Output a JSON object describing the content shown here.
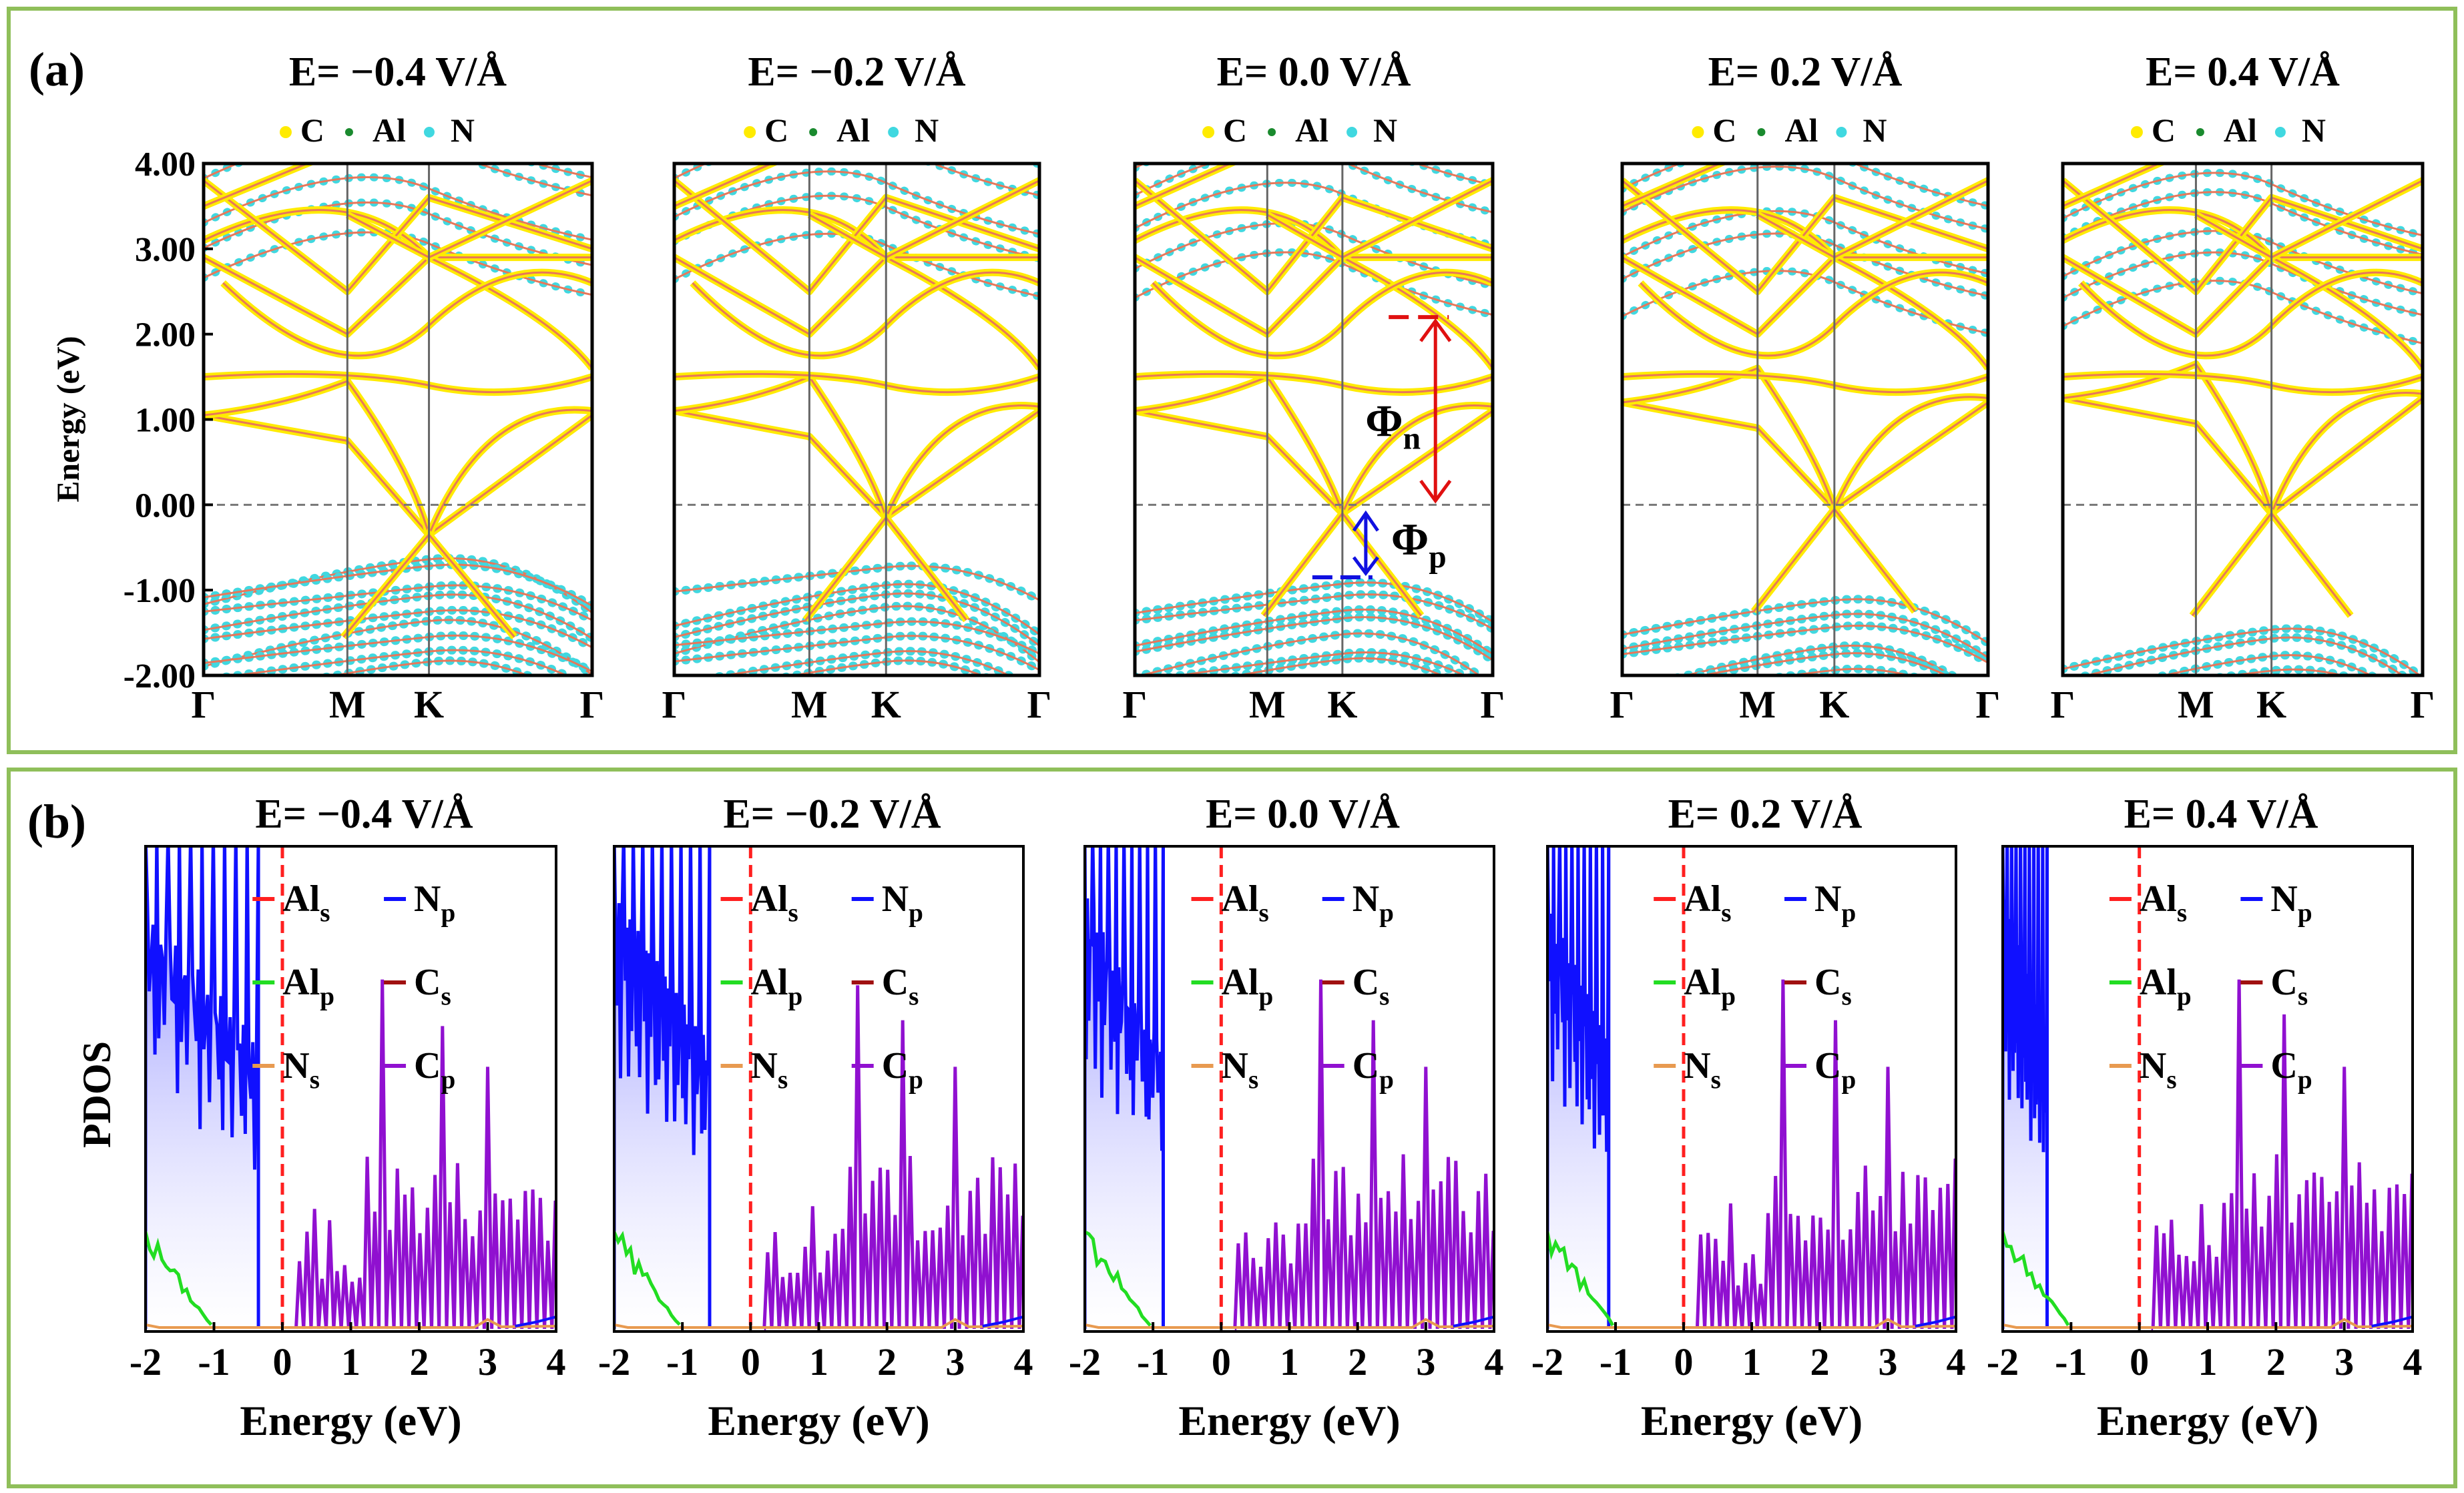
{
  "colors": {
    "frame": "#8fbf5a",
    "band_line": "#e8775a",
    "C_marker": "#ffeb00",
    "Al_marker": "#1a8a2e",
    "N_marker": "#40d8e0",
    "Al_s": "#ff2020",
    "Al_p": "#22dd22",
    "N_s": "#e89a50",
    "N_p": "#1010ff",
    "C_s": "#a01010",
    "C_p": "#9010d0",
    "phi_n": "#e01010",
    "phi_p": "#1010e0"
  },
  "panel_a": {
    "label": "(a)",
    "ylabel": "Energy (eV)",
    "legend": [
      "C",
      "Al",
      "N"
    ],
    "kpoints": [
      "Γ",
      "M",
      "K",
      "Γ"
    ],
    "annotation_n_main": "Φ",
    "annotation_n_sub": "n",
    "annotation_p_main": "Φ",
    "annotation_p_sub": "p"
  },
  "panel_b": {
    "label": "(b)",
    "ylabel": "PDOS",
    "xlabel": "Energy (eV)",
    "legend": [
      {
        "main": "Al",
        "sub": "s"
      },
      {
        "main": "N",
        "sub": "p"
      },
      {
        "main": "Al",
        "sub": "p"
      },
      {
        "main": "C",
        "sub": "s"
      },
      {
        "main": "N",
        "sub": "s"
      },
      {
        "main": "C",
        "sub": "p"
      }
    ]
  },
  "chart_data": [
    {
      "type": "line",
      "title": "E= −0.4 V/Å",
      "ylabel": "Energy (eV)",
      "ylim": [
        -2,
        4
      ],
      "yticks": [
        "4.00",
        "3.00",
        "2.00",
        "1.00",
        "0.00",
        "-1.00",
        "-2.00"
      ],
      "xticklabels": [
        "Γ",
        "M",
        "K",
        "Γ"
      ],
      "dirac_point_eV": -0.35,
      "cbm_gamma_eV": 1.05,
      "n_valence_top_eV": -0.55,
      "n_conduction_eV": 2.4
    },
    {
      "type": "line",
      "title": "E= −0.2 V/Å",
      "ylim": [
        -2,
        4
      ],
      "xticklabels": [
        "Γ",
        "M",
        "K",
        "Γ"
      ],
      "dirac_point_eV": -0.15,
      "cbm_gamma_eV": 1.1,
      "n_valence_top_eV": -0.7,
      "n_conduction_eV": 2.4
    },
    {
      "type": "line",
      "title": "E= 0.0 V/Å",
      "ylim": [
        -2,
        4
      ],
      "xticklabels": [
        "Γ",
        "M",
        "K",
        "Γ"
      ],
      "dirac_point_eV": -0.1,
      "cbm_gamma_eV": 1.1,
      "n_valence_top_eV": -0.85,
      "n_conduction_eV": 2.2,
      "phi_n_range_eV": [
        0.0,
        2.2
      ],
      "phi_p_range_eV": [
        -0.85,
        -0.1
      ]
    },
    {
      "type": "line",
      "title": "E= 0.2 V/Å",
      "ylim": [
        -2,
        4
      ],
      "xticklabels": [
        "Γ",
        "M",
        "K",
        "Γ"
      ],
      "dirac_point_eV": -0.05,
      "cbm_gamma_eV": 1.2,
      "n_valence_top_eV": -1.1,
      "n_conduction_eV": 2.0
    },
    {
      "type": "line",
      "title": "E= 0.4 V/Å",
      "ylim": [
        -2,
        4
      ],
      "xticklabels": [
        "Γ",
        "M",
        "K",
        "Γ"
      ],
      "dirac_point_eV": -0.1,
      "cbm_gamma_eV": 1.25,
      "n_valence_top_eV": -1.4,
      "n_conduction_eV": 1.7
    },
    {
      "type": "area",
      "title": "E= −0.4 V/Å",
      "xlabel": "Energy (eV)",
      "ylabel": "PDOS",
      "xlim": [
        -2,
        4
      ],
      "xticks": [
        "-2",
        "-1",
        "0",
        "1",
        "2",
        "3",
        "4"
      ],
      "n_p_edge_eV": -0.35,
      "c_p_peaks_eV": [
        1.5,
        2.3,
        3.0
      ],
      "fermi_eV": 0
    },
    {
      "type": "area",
      "title": "E= −0.2 V/Å",
      "xlabel": "Energy (eV)",
      "xlim": [
        -2,
        4
      ],
      "xticks": [
        "-2",
        "-1",
        "0",
        "1",
        "2",
        "3",
        "4"
      ],
      "n_p_edge_eV": -0.6,
      "c_p_peaks_eV": [
        1.6,
        2.2,
        3.0
      ],
      "fermi_eV": 0
    },
    {
      "type": "area",
      "title": "E= 0.0 V/Å",
      "xlabel": "Energy (eV)",
      "xlim": [
        -2,
        4
      ],
      "xticks": [
        "-2",
        "-1",
        "0",
        "1",
        "2",
        "3",
        "4"
      ],
      "n_p_edge_eV": -0.85,
      "c_p_peaks_eV": [
        1.5,
        2.2,
        3.0
      ],
      "fermi_eV": 0
    },
    {
      "type": "area",
      "title": "E= 0.2 V/Å",
      "xlabel": "Energy (eV)",
      "xlim": [
        -2,
        4
      ],
      "xticks": [
        "-2",
        "-1",
        "0",
        "1",
        "2",
        "3",
        "4"
      ],
      "n_p_edge_eV": -1.1,
      "c_p_peaks_eV": [
        1.5,
        2.2,
        3.0
      ],
      "fermi_eV": 0
    },
    {
      "type": "area",
      "title": "E= 0.4 V/Å",
      "xlabel": "Energy (eV)",
      "xlim": [
        -2,
        4
      ],
      "xticks": [
        "-2",
        "-1",
        "0",
        "1",
        "2",
        "3",
        "4"
      ],
      "n_p_edge_eV": -1.35,
      "c_p_peaks_eV": [
        1.5,
        2.1,
        3.0
      ],
      "fermi_eV": 0
    }
  ]
}
